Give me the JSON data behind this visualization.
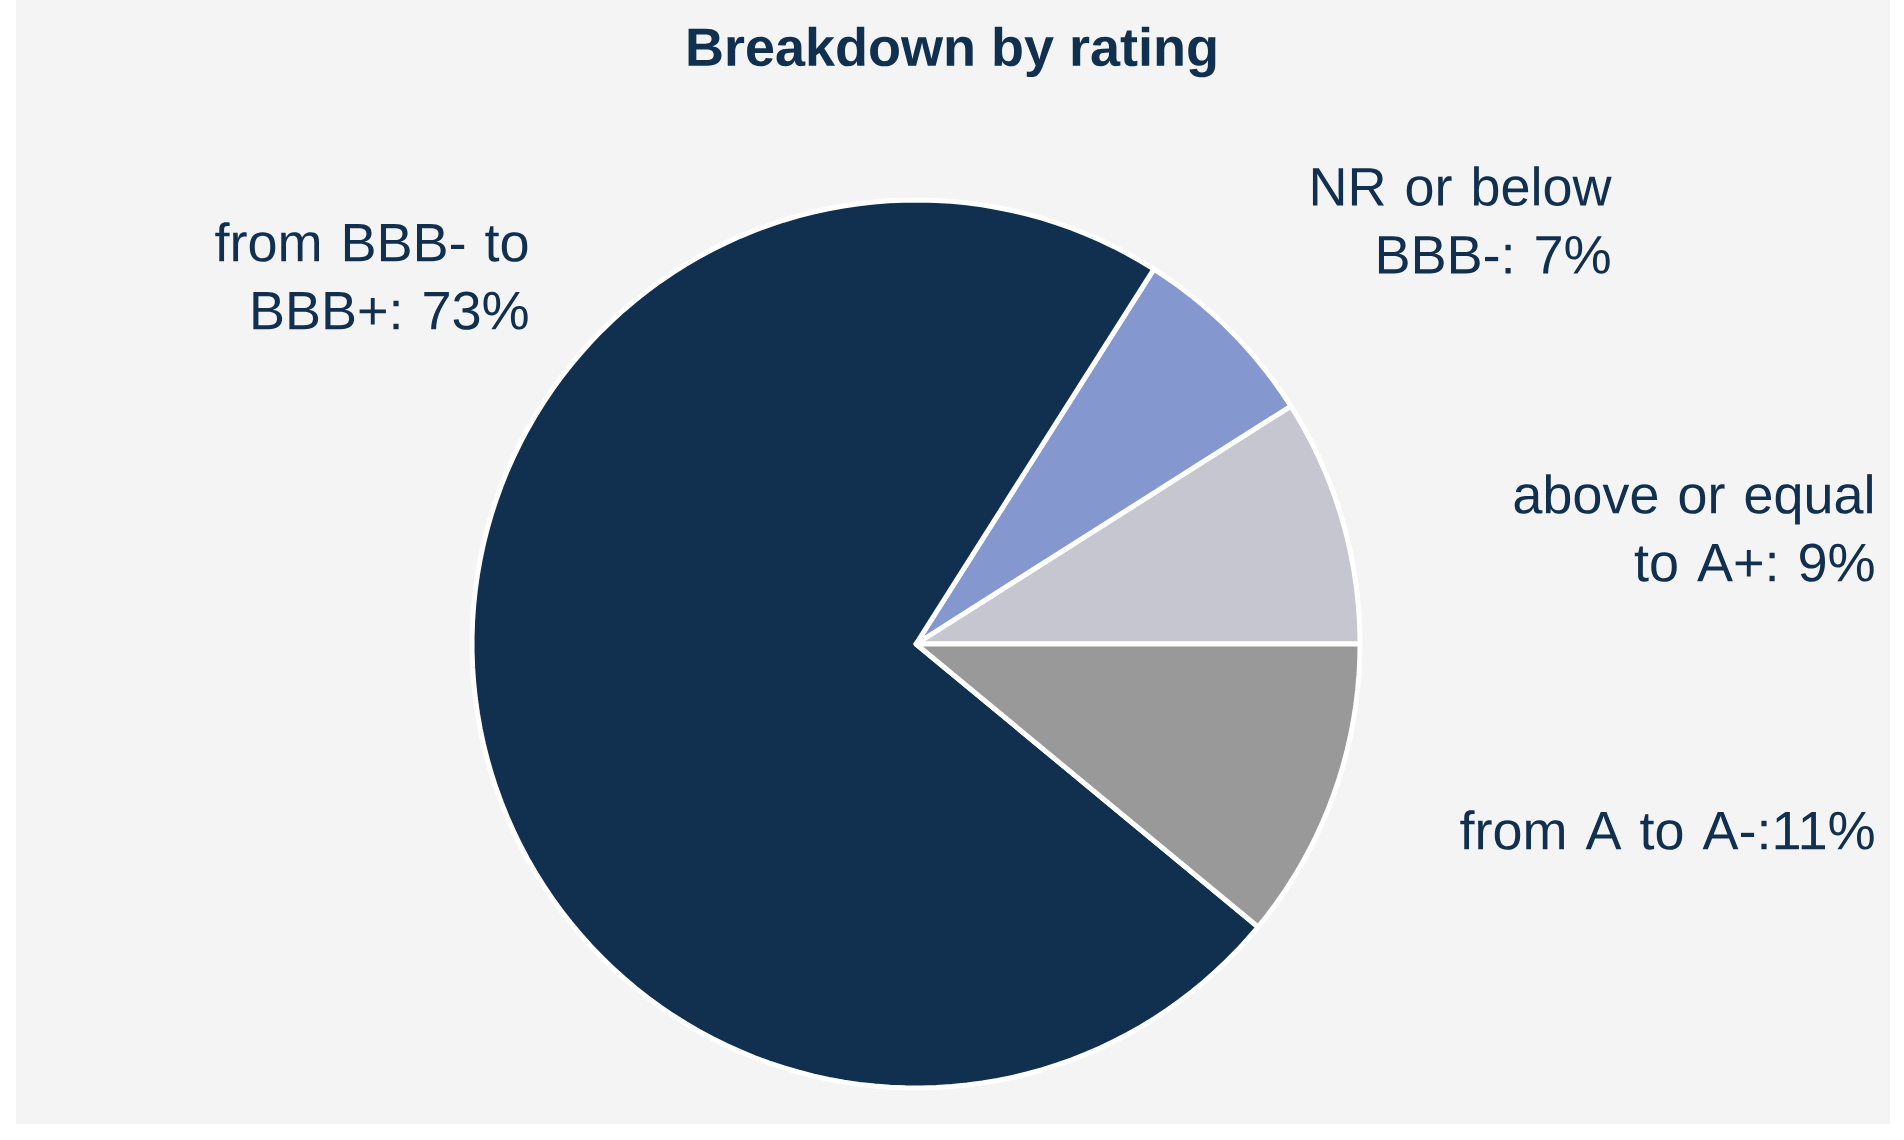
{
  "chart_data": {
    "type": "pie",
    "title": "Breakdown by rating",
    "categories": [
      "above or equal to A+: 9%",
      "NR or below BBB-: 7%",
      "from BBB- to BBB+: 73%",
      "from A to A-:11%"
    ],
    "values": [
      9,
      7,
      73,
      11
    ],
    "colors": [
      "#c5c6d0",
      "#8497cf",
      "#11304f",
      "#999999"
    ]
  }
}
